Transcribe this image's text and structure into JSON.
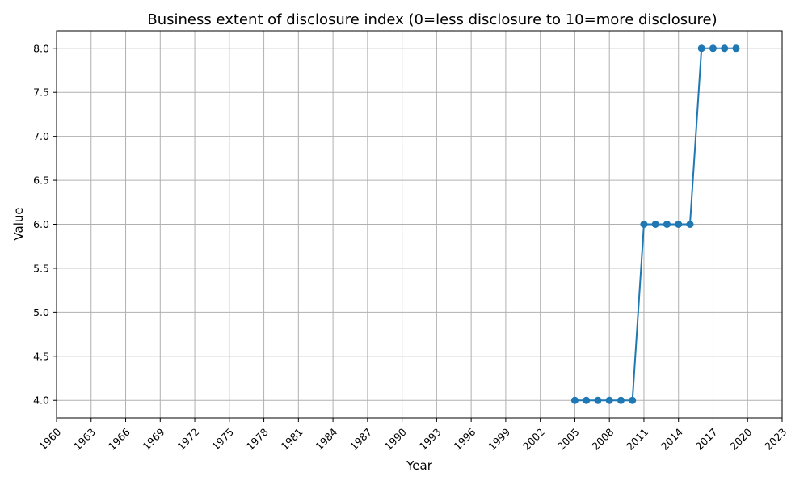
{
  "chart_data": {
    "type": "line",
    "title": "Business extent of disclosure index (0=less disclosure to 10=more disclosure)",
    "xlabel": "Year",
    "ylabel": "Value",
    "xlim": [
      1960,
      2023
    ],
    "ylim": [
      3.8,
      8.2
    ],
    "x_ticks": [
      1960,
      1963,
      1966,
      1969,
      1972,
      1975,
      1978,
      1981,
      1984,
      1987,
      1990,
      1993,
      1996,
      1999,
      2002,
      2005,
      2008,
      2011,
      2014,
      2017,
      2020,
      2023
    ],
    "y_ticks": [
      "4.0",
      "4.5",
      "5.0",
      "5.5",
      "6.0",
      "6.5",
      "7.0",
      "7.5",
      "8.0"
    ],
    "grid": true,
    "series": [
      {
        "color": "#1f77b4",
        "x": [
          2005,
          2006,
          2007,
          2008,
          2009,
          2010,
          2011,
          2012,
          2013,
          2014,
          2015,
          2016,
          2017,
          2018,
          2019
        ],
        "y": [
          4,
          4,
          4,
          4,
          4,
          4,
          6,
          6,
          6,
          6,
          6,
          8,
          8,
          8,
          8
        ]
      }
    ]
  }
}
